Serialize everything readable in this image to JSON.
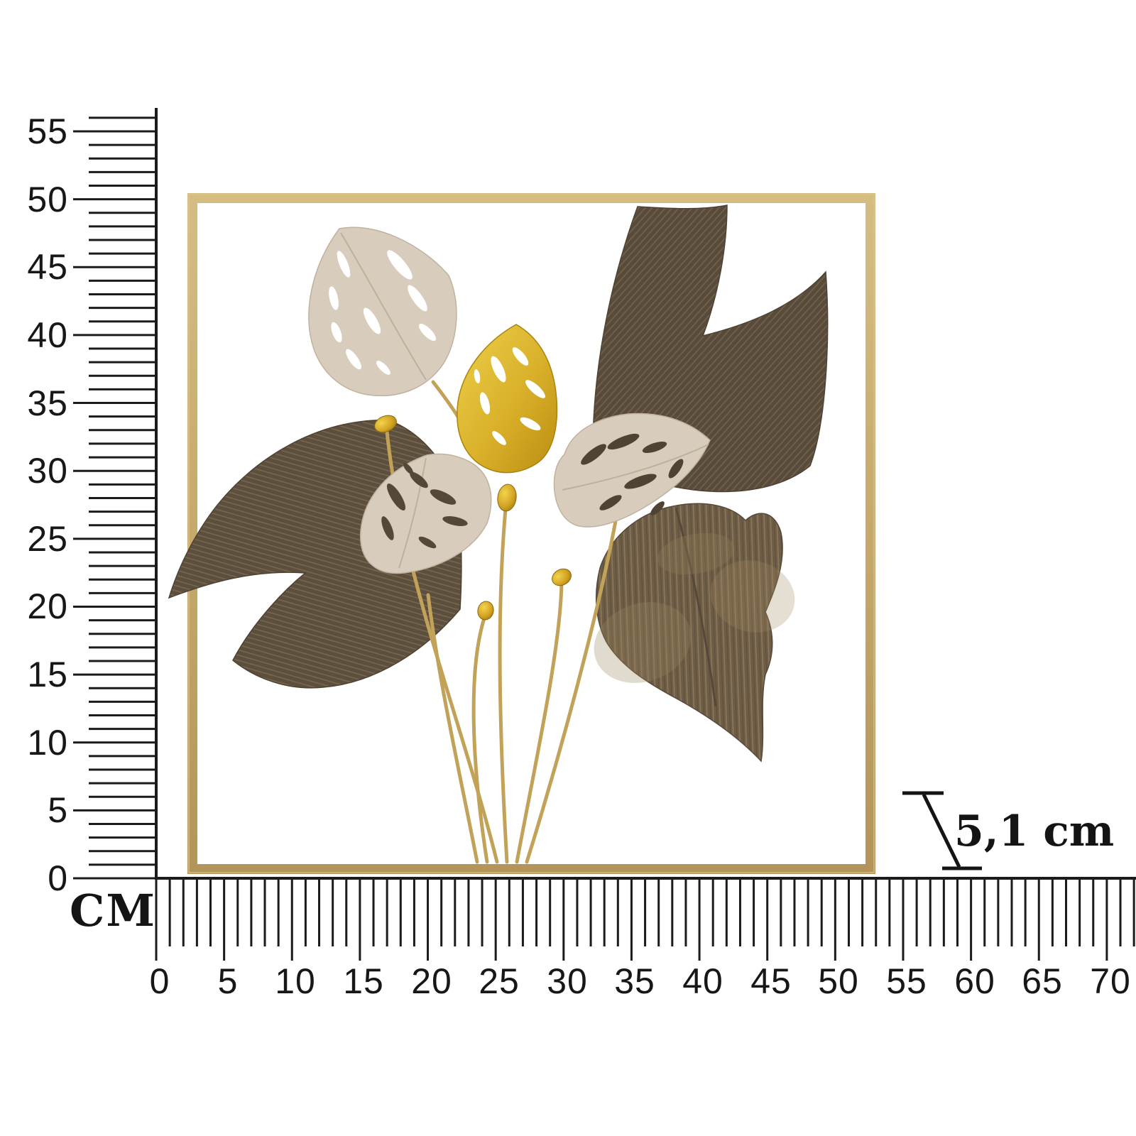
{
  "page": {
    "background": "#ffffff"
  },
  "ruler": {
    "unit_label": "CM",
    "vertical": {
      "labels": [
        "55",
        "50",
        "45",
        "40",
        "35",
        "30",
        "25",
        "20",
        "15",
        "10",
        "5",
        "0"
      ]
    },
    "horizontal": {
      "labels": [
        "0",
        "5",
        "10",
        "15",
        "20",
        "25",
        "30",
        "35",
        "40",
        "45",
        "50",
        "55",
        "60",
        "65",
        "70"
      ]
    }
  },
  "depth_indicator": {
    "label": "5,1 cm"
  },
  "artwork": {
    "frame_color": "#c7aa6c",
    "palm_leaf_color": "#5d4f3e",
    "heart_leaf_color": "#6e5d46",
    "cream_leaf_color": "#d8ccbc",
    "gold_leaf_color": "#d9b02a",
    "stem_color": "#c2a258",
    "berry_color": "#d8a81f",
    "ruler_color": "#1b1b1b"
  }
}
